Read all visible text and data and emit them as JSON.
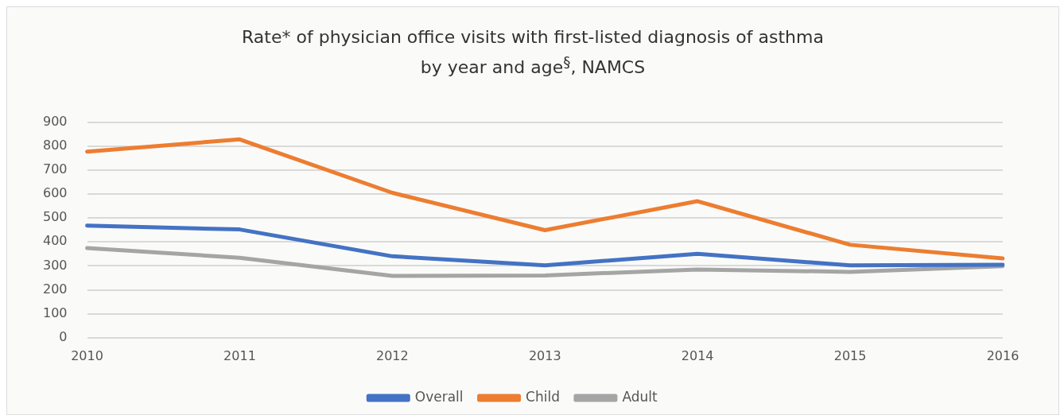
{
  "chart_data": {
    "type": "line",
    "title": "Rate* of physician office visits with first-listed diagnosis of asthma\nby year and age$^{§}$, NAMCS",
    "categories": [
      "2010",
      "2011",
      "2012",
      "2013",
      "2014",
      "2015",
      "2016"
    ],
    "series": [
      {
        "name": "Overall",
        "color": "#4472c4",
        "values": [
          468,
          452,
          340,
          302,
          350,
          302,
          305
        ]
      },
      {
        "name": "Child",
        "color": "#ed7d31",
        "values": [
          777,
          828,
          605,
          449,
          570,
          388,
          331
        ]
      },
      {
        "name": "Adult",
        "color": "#a5a5a5",
        "values": [
          374,
          334,
          258,
          260,
          285,
          275,
          299
        ]
      }
    ],
    "ylim": [
      0,
      900
    ],
    "yticks": [
      0,
      100,
      200,
      300,
      400,
      500,
      600,
      700,
      800,
      900
    ],
    "grid": "y",
    "legend": "bottom",
    "marker": "none",
    "line_style": "solid"
  }
}
